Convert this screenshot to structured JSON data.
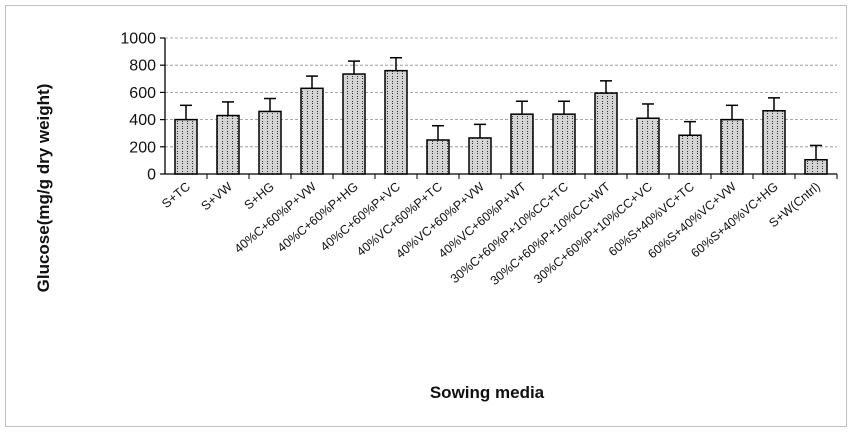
{
  "chart_data": {
    "type": "bar",
    "title": "",
    "xlabel": "Sowing media",
    "ylabel": "Glucose(mg/g dry weight)",
    "ylim": [
      0,
      1000
    ],
    "yticks": [
      "0",
      "200",
      "400",
      "600",
      "800",
      "1000"
    ],
    "grid": "horizontal dashed",
    "legend": "none",
    "categories": [
      "S+TC",
      "S+VW",
      "S+HG",
      "40%C+60%P+VW",
      "40%C+60%P+HG",
      "40%C+60%P+VC",
      "40%VC+60%P+TC",
      "40%VC+60%P+VW",
      "40%VC+60%P+WT",
      "30%C+60%P+10%CC+TC",
      "30%C+60%P+10%CC+WT",
      "30%C+60%P+10%CC+VC",
      "60%S+40%VC+TC",
      "60%S+40%VC+VW",
      "60%S+40%VC+HG",
      "S+W(Cntrl)"
    ],
    "values": [
      400,
      430,
      460,
      630,
      735,
      760,
      250,
      265,
      440,
      440,
      595,
      410,
      285,
      400,
      465,
      105
    ],
    "errors": [
      105,
      100,
      95,
      90,
      95,
      95,
      105,
      100,
      95,
      95,
      90,
      105,
      100,
      105,
      95,
      105
    ],
    "colors": {
      "bar_fill": "#c8c8c8",
      "bar_stroke": "#000000",
      "grid": "#8c8c8c"
    }
  }
}
